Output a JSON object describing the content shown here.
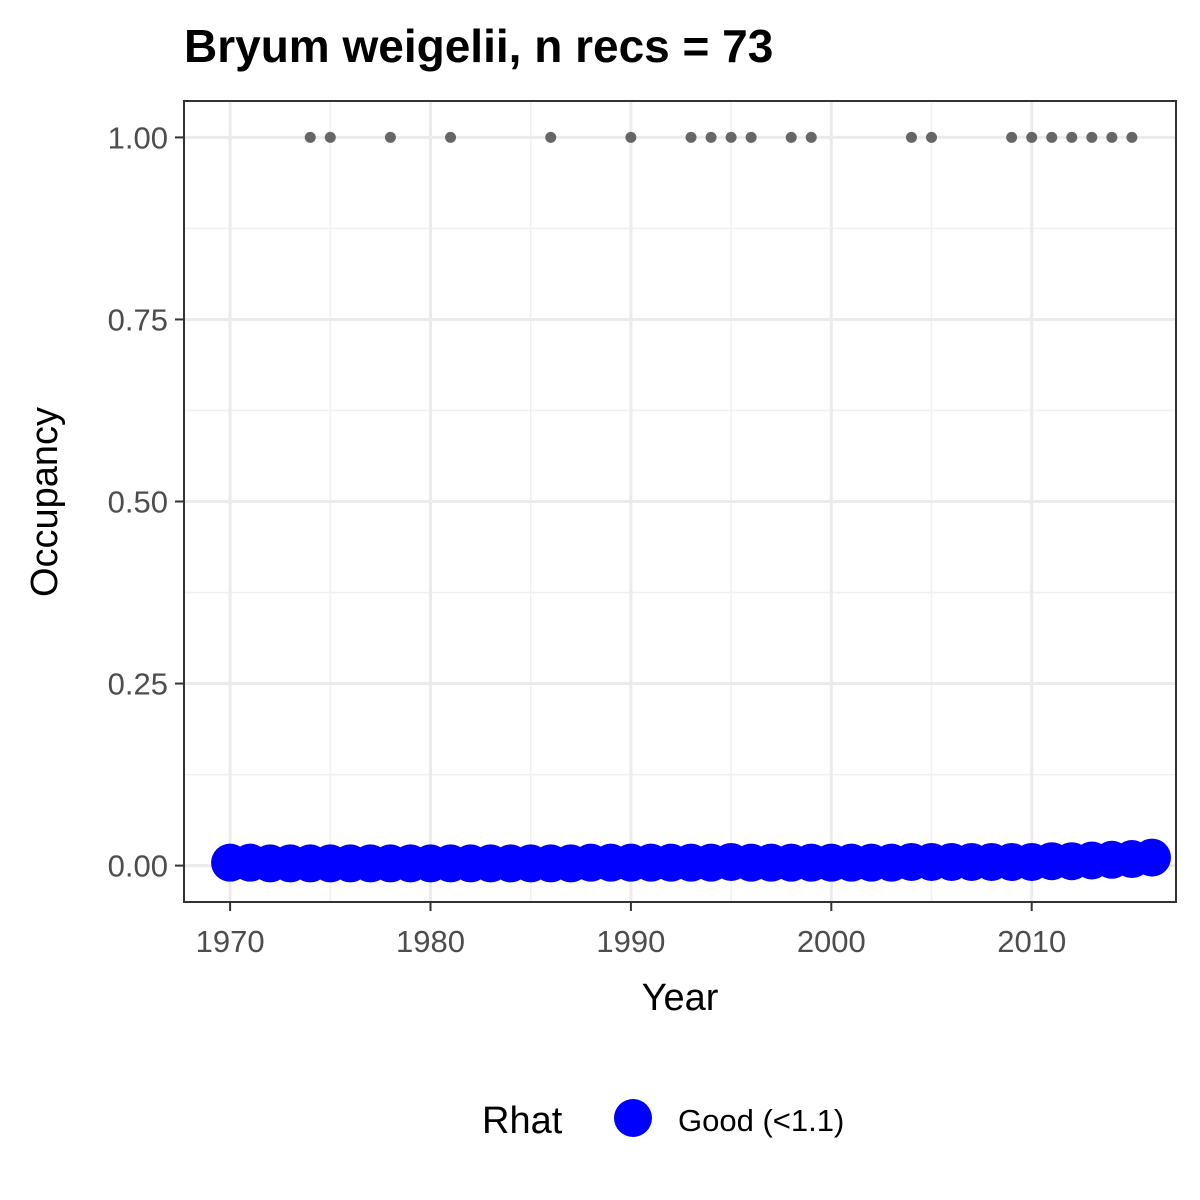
{
  "chart_data": {
    "type": "scatter",
    "title": "Bryum weigelii, n recs = 73",
    "xlabel": "Year",
    "ylabel": "Occupancy",
    "xlim": [
      1967.7,
      2017.2
    ],
    "ylim": [
      -0.05,
      1.05
    ],
    "x_ticks": [
      1970,
      1980,
      1990,
      2000,
      2010
    ],
    "x_tick_labels": [
      "1970",
      "1980",
      "1990",
      "2000",
      "2010"
    ],
    "y_ticks": [
      0,
      0.25,
      0.5,
      0.75,
      1
    ],
    "y_tick_labels": [
      "0.00",
      "0.25",
      "0.50",
      "0.75",
      "1.00"
    ],
    "grid": true,
    "legend": {
      "position": "bottom",
      "title": "Rhat",
      "entries": [
        {
          "label": "Good (<1.1)",
          "color": "#0000ff"
        }
      ]
    },
    "series": [
      {
        "name": "Good (<1.1)",
        "color": "#0000ff",
        "marker": "large-circle",
        "x": [
          1970,
          1971,
          1972,
          1973,
          1974,
          1975,
          1976,
          1977,
          1978,
          1979,
          1980,
          1981,
          1982,
          1983,
          1984,
          1985,
          1986,
          1987,
          1988,
          1989,
          1990,
          1991,
          1992,
          1993,
          1994,
          1995,
          1996,
          1997,
          1998,
          1999,
          2000,
          2001,
          2002,
          2003,
          2004,
          2005,
          2006,
          2007,
          2008,
          2009,
          2010,
          2011,
          2012,
          2013,
          2014,
          2015,
          2016
        ],
        "y": [
          0.004,
          0.004,
          0.003,
          0.003,
          0.003,
          0.003,
          0.003,
          0.003,
          0.003,
          0.003,
          0.003,
          0.003,
          0.003,
          0.003,
          0.003,
          0.003,
          0.003,
          0.003,
          0.004,
          0.004,
          0.004,
          0.004,
          0.004,
          0.004,
          0.004,
          0.005,
          0.004,
          0.004,
          0.004,
          0.004,
          0.004,
          0.004,
          0.004,
          0.004,
          0.005,
          0.005,
          0.005,
          0.005,
          0.005,
          0.005,
          0.005,
          0.006,
          0.006,
          0.007,
          0.008,
          0.009,
          0.011
        ]
      },
      {
        "name": "",
        "color": "#666666",
        "marker": "small-dot",
        "x": [
          1974,
          1975,
          1978,
          1981,
          1986,
          1990,
          1993,
          1994,
          1995,
          1996,
          1998,
          1999,
          2004,
          2005,
          2009,
          2010,
          2011,
          2012,
          2013,
          2014,
          2015
        ],
        "y": [
          1,
          1,
          1,
          1,
          1,
          1,
          1,
          1,
          1,
          1,
          1,
          1,
          1,
          1,
          1,
          1,
          1,
          1,
          1,
          1,
          1
        ]
      }
    ]
  }
}
